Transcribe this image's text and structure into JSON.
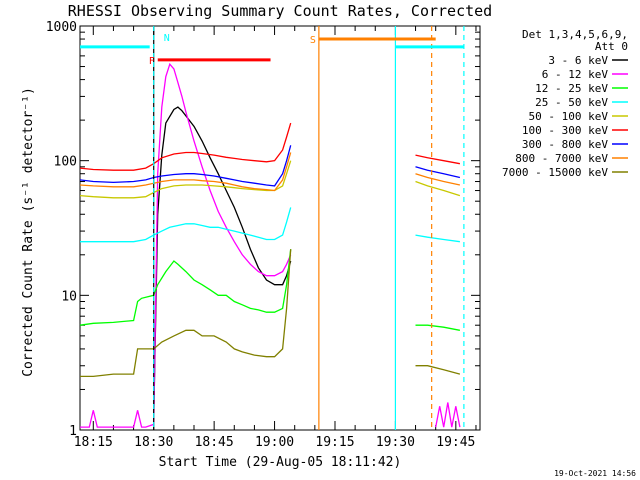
{
  "chart_data": {
    "type": "line",
    "title": "RHESSI Observing Summary Count Rates, Corrected",
    "xlabel": "Start Time (29-Aug-05 18:11:42)",
    "ylabel": "Corrected Count Rate (s⁻¹ detector⁻¹)",
    "y_scale": "log",
    "ylim": [
      1,
      1000
    ],
    "y_ticks": [
      1,
      10,
      100,
      1000
    ],
    "y_tick_labels": [
      "1",
      "10",
      "100",
      "1000"
    ],
    "xlim": [
      "18:11:42",
      "19:51:00"
    ],
    "x_ticks": [
      "18:15",
      "18:30",
      "18:45",
      "19:00",
      "19:15",
      "19:30",
      "19:45"
    ],
    "legend": {
      "placement": "top-right",
      "header": [
        "Det 1,3,4,5,6,9,",
        "Att 0"
      ]
    },
    "series": [
      {
        "name": "3 - 6 keV",
        "color": "#000000",
        "x": [
          "18:30",
          "18:31",
          "18:32",
          "18:33",
          "18:35",
          "18:36",
          "18:37",
          "18:38",
          "18:40",
          "18:42",
          "18:44",
          "18:46",
          "18:48",
          "18:50",
          "18:52",
          "18:54",
          "18:56",
          "18:58",
          "19:00",
          "19:02",
          "19:03",
          "19:04"
        ],
        "y": [
          1.2,
          40,
          110,
          190,
          240,
          250,
          235,
          215,
          180,
          140,
          105,
          80,
          60,
          45,
          32,
          22,
          16,
          13,
          12,
          12,
          14,
          18
        ]
      },
      {
        "name": "6 - 12 keV",
        "color": "#ff00ff",
        "x": [
          "18:11:42",
          "18:14",
          "18:15",
          "18:16",
          "18:25",
          "18:26",
          "18:27",
          "18:28",
          "18:30",
          "18:31",
          "18:32",
          "18:33",
          "18:34",
          "18:35",
          "18:36",
          "18:37",
          "18:38",
          "18:40",
          "18:42",
          "18:44",
          "18:46",
          "18:48",
          "18:50",
          "18:52",
          "18:54",
          "18:56",
          "18:58",
          "19:00",
          "19:02",
          "19:03",
          "19:04",
          "19:40",
          "19:41",
          "19:42",
          "19:43",
          "19:44",
          "19:45",
          "19:46"
        ],
        "y": [
          1.05,
          1.05,
          1.4,
          1.05,
          1.05,
          1.4,
          1.05,
          1.05,
          1.1,
          80,
          250,
          420,
          520,
          480,
          380,
          300,
          230,
          140,
          90,
          60,
          42,
          32,
          25,
          20,
          17,
          15,
          14,
          14,
          15,
          17,
          20,
          1.05,
          1.5,
          1.05,
          1.6,
          1.05,
          1.5,
          1.05
        ]
      },
      {
        "name": "12 - 25 keV",
        "color": "#00ff00",
        "x": [
          "18:11:42",
          "18:15",
          "18:20",
          "18:25",
          "18:26",
          "18:27",
          "18:30",
          "18:31",
          "18:33",
          "18:35",
          "18:36",
          "18:38",
          "18:40",
          "18:42",
          "18:44",
          "18:46",
          "18:48",
          "18:50",
          "18:52",
          "18:54",
          "18:56",
          "18:58",
          "19:00",
          "19:02",
          "19:03",
          "19:04",
          "19:35",
          "19:38",
          "19:42",
          "19:46"
        ],
        "y": [
          6,
          6.2,
          6.3,
          6.5,
          9,
          9.5,
          10,
          12,
          15,
          18,
          17,
          15,
          13,
          12,
          11,
          10,
          10,
          9,
          8.5,
          8,
          7.8,
          7.5,
          7.5,
          8,
          12,
          22,
          6,
          6,
          5.8,
          5.5
        ]
      },
      {
        "name": "25 - 50 keV",
        "color": "#00ffff",
        "x": [
          "18:11:42",
          "18:15",
          "18:20",
          "18:25",
          "18:28",
          "18:30",
          "18:32",
          "18:34",
          "18:36",
          "18:38",
          "18:40",
          "18:42",
          "18:44",
          "18:46",
          "18:48",
          "18:50",
          "18:52",
          "18:54",
          "18:56",
          "18:58",
          "19:00",
          "19:02",
          "19:03",
          "19:04",
          "19:35",
          "19:38",
          "19:42",
          "19:46"
        ],
        "y": [
          25,
          25,
          25,
          25,
          26,
          28,
          30,
          32,
          33,
          34,
          34,
          33,
          32,
          32,
          31,
          30,
          29,
          28,
          27,
          26,
          26,
          28,
          35,
          45,
          28,
          27,
          26,
          25
        ]
      },
      {
        "name": "50 - 100 keV",
        "color": "#c8c800",
        "x": [
          "18:11:42",
          "18:15",
          "18:20",
          "18:25",
          "18:28",
          "18:30",
          "18:32",
          "18:35",
          "18:38",
          "18:40",
          "18:42",
          "18:45",
          "18:48",
          "18:50",
          "18:52",
          "18:55",
          "18:58",
          "19:00",
          "19:02",
          "19:03",
          "19:04",
          "19:35",
          "19:38",
          "19:42",
          "19:46"
        ],
        "y": [
          55,
          54,
          53,
          53,
          54,
          58,
          62,
          65,
          66,
          66,
          66,
          65,
          64,
          63,
          62,
          61,
          60,
          60,
          65,
          80,
          100,
          70,
          65,
          60,
          55
        ]
      },
      {
        "name": "100 - 300 keV",
        "color": "#ff0000",
        "x": [
          "18:11:42",
          "18:15",
          "18:20",
          "18:25",
          "18:28",
          "18:30",
          "18:32",
          "18:35",
          "18:38",
          "18:40",
          "18:42",
          "18:45",
          "18:48",
          "18:50",
          "18:52",
          "18:55",
          "18:58",
          "19:00",
          "19:02",
          "19:03",
          "19:04",
          "19:35",
          "19:38",
          "19:42",
          "19:46"
        ],
        "y": [
          88,
          86,
          85,
          85,
          88,
          95,
          105,
          112,
          115,
          115,
          113,
          110,
          106,
          104,
          102,
          100,
          98,
          100,
          120,
          150,
          190,
          110,
          105,
          100,
          95
        ]
      },
      {
        "name": "300 - 800 keV",
        "color": "#0000ff",
        "x": [
          "18:11:42",
          "18:15",
          "18:20",
          "18:25",
          "18:28",
          "18:30",
          "18:32",
          "18:35",
          "18:38",
          "18:40",
          "18:42",
          "18:45",
          "18:48",
          "18:50",
          "18:52",
          "18:55",
          "18:58",
          "19:00",
          "19:02",
          "19:03",
          "19:04",
          "19:35",
          "19:38",
          "19:42",
          "19:46"
        ],
        "y": [
          72,
          70,
          69,
          70,
          72,
          75,
          77,
          79,
          80,
          80,
          79,
          77,
          74,
          72,
          70,
          68,
          66,
          65,
          80,
          100,
          130,
          90,
          85,
          80,
          75
        ]
      },
      {
        "name": "800 - 7000 keV",
        "color": "#ff8000",
        "x": [
          "18:11:42",
          "18:15",
          "18:20",
          "18:25",
          "18:28",
          "18:30",
          "18:32",
          "18:35",
          "18:38",
          "18:40",
          "18:42",
          "18:45",
          "18:48",
          "18:50",
          "18:52",
          "18:55",
          "18:58",
          "19:00",
          "19:02",
          "19:03",
          "19:04",
          "19:35",
          "19:38",
          "19:42",
          "19:46"
        ],
        "y": [
          66,
          65,
          64,
          64,
          66,
          68,
          70,
          72,
          72,
          72,
          71,
          70,
          68,
          66,
          64,
          62,
          61,
          60,
          72,
          90,
          115,
          80,
          75,
          70,
          66
        ]
      },
      {
        "name": "7000 - 15000 keV",
        "color": "#808000",
        "x": [
          "18:11:42",
          "18:15",
          "18:20",
          "18:25",
          "18:26",
          "18:30",
          "18:32",
          "18:35",
          "18:38",
          "18:40",
          "18:42",
          "18:45",
          "18:48",
          "18:50",
          "18:52",
          "18:55",
          "18:58",
          "19:00",
          "19:02",
          "19:03",
          "19:04",
          "19:35",
          "19:38",
          "19:42",
          "19:46"
        ],
        "y": [
          2.5,
          2.5,
          2.6,
          2.6,
          4,
          4,
          4.5,
          5,
          5.5,
          5.5,
          5,
          5,
          4.5,
          4,
          3.8,
          3.6,
          3.5,
          3.5,
          4,
          8,
          22,
          3,
          3,
          2.8,
          2.6
        ]
      }
    ],
    "flags": [
      {
        "label": "F",
        "color": "#ff0000",
        "start": "18:31",
        "end": "18:59",
        "y": 560
      },
      {
        "label": "N",
        "color": "#00ffff",
        "start": "18:31",
        "end": "18:31",
        "y": 700
      },
      {
        "label": "S",
        "color": "#ff8000",
        "start": "19:11",
        "end": "19:40",
        "y": 800
      }
    ],
    "night_segments": [
      {
        "color": "#00ffff",
        "start": "18:11:42",
        "end": "18:29",
        "y": 700,
        "edge_end": "18:29",
        "edge_end_style": "solid"
      },
      {
        "color": "#00ffff",
        "start": "19:30",
        "end": "19:47",
        "y": 700,
        "edge_start": "19:30",
        "edge_end": "19:47"
      }
    ],
    "vlines": [
      {
        "x": "18:30",
        "color": "#000000",
        "style": "solid"
      },
      {
        "x": "18:30",
        "color": "#00ffff",
        "style": "dashed"
      },
      {
        "x": "19:11",
        "color": "#ff8000",
        "style": "solid"
      },
      {
        "x": "19:30",
        "color": "#00ffff",
        "style": "solid"
      },
      {
        "x": "19:39",
        "color": "#ff8000",
        "style": "dashed"
      },
      {
        "x": "19:47",
        "color": "#00ffff",
        "style": "dashed"
      }
    ]
  },
  "footer": {
    "timestamp": "19-Oct-2021 14:56"
  }
}
